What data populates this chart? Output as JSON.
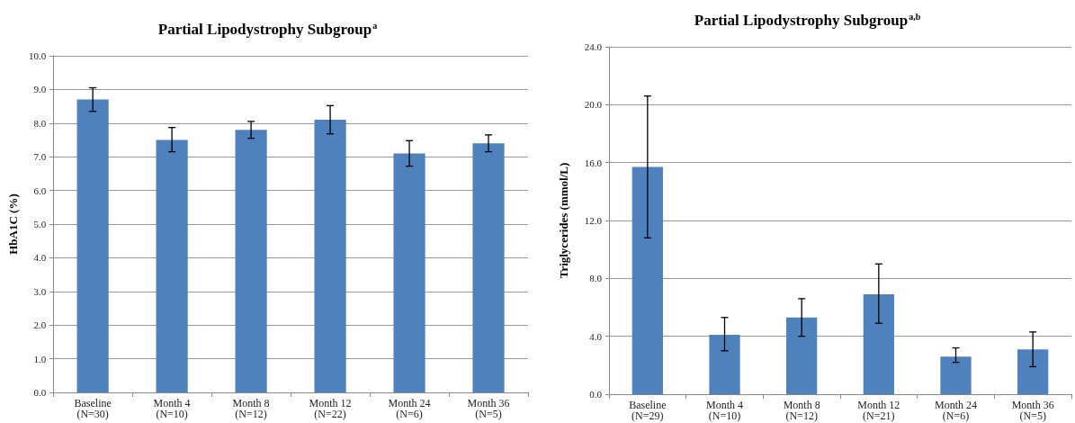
{
  "chart_data": [
    {
      "type": "bar",
      "title": "Partial Lipodystrophy Subgroup$^{a}$",
      "ylabel": "HbA1C (%)",
      "categories": [
        "Baseline\n(N=30)",
        "Month 4\n(N=10)",
        "Month 8\n(N=12)",
        "Month 12\n(N=22)",
        "Month 24\n(N=6)",
        "Month 36\n(N=5)"
      ],
      "series": [
        {
          "color": "#4f81bd",
          "values": [
            8.7,
            7.5,
            7.8,
            8.1,
            7.1,
            7.4
          ],
          "errors": [
            [
              8.35,
              9.05
            ],
            [
              7.15,
              7.87
            ],
            [
              7.55,
              8.05
            ],
            [
              7.68,
              8.52
            ],
            [
              6.72,
              7.48
            ],
            [
              7.15,
              7.65
            ]
          ]
        }
      ],
      "ylim": [
        0,
        10
      ],
      "yticks": [
        {
          "value": 0,
          "label": "0.0"
        },
        {
          "value": 1,
          "label": "1.0"
        },
        {
          "value": 2,
          "label": "2.0"
        },
        {
          "value": 3,
          "label": "3.0"
        },
        {
          "value": 4,
          "label": "4.0"
        },
        {
          "value": 5,
          "label": "5.0"
        },
        {
          "value": 6,
          "label": "6.0"
        },
        {
          "value": 7,
          "label": "7.0"
        },
        {
          "value": 8,
          "label": "8.0"
        },
        {
          "value": 9,
          "label": "9.0"
        },
        {
          "value": 10,
          "label": "10.0"
        }
      ],
      "grid": "y"
    },
    {
      "type": "bar",
      "title": "Partial Lipodystrophy Subgroup$^{a,b}$",
      "ylabel": "Triglycerides (mmol/L)",
      "categories": [
        "Baseline\n(N=29)",
        "Month 4\n(N=10)",
        "Month 8\n(N=12)",
        "Month 12\n(N=21)",
        "Month 24\n(N=6)",
        "Month 36\n(N=5)"
      ],
      "series": [
        {
          "color": "#4f81bd",
          "values": [
            15.7,
            4.1,
            5.3,
            6.9,
            2.6,
            3.1
          ],
          "errors": [
            [
              10.8,
              20.6
            ],
            [
              3.0,
              5.3
            ],
            [
              4.0,
              6.6
            ],
            [
              4.9,
              9.0
            ],
            [
              2.2,
              3.2
            ],
            [
              1.9,
              4.3
            ]
          ]
        }
      ],
      "ylim": [
        0,
        24
      ],
      "yticks": [
        {
          "value": 0,
          "label": "0.0"
        },
        {
          "value": 4,
          "label": "4.0"
        },
        {
          "value": 8,
          "label": "8.0"
        },
        {
          "value": 12,
          "label": "12.0"
        },
        {
          "value": 16,
          "label": "16.0"
        },
        {
          "value": 20,
          "label": "20.0"
        },
        {
          "value": 24,
          "label": "24.0"
        }
      ],
      "grid": "y"
    }
  ]
}
